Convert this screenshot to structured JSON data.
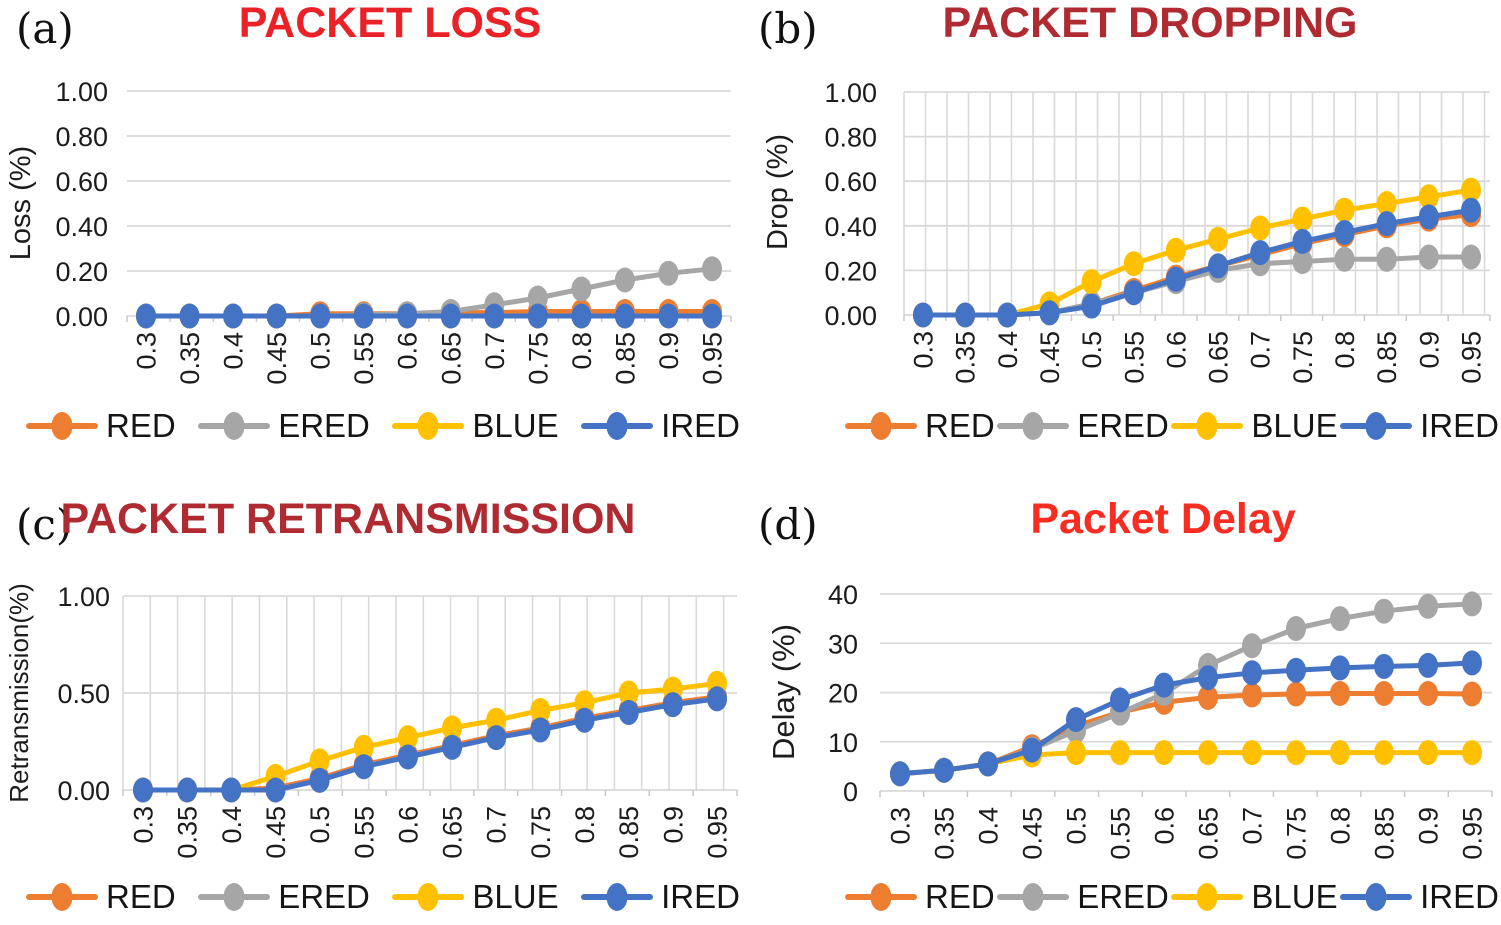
{
  "figure": {
    "background": "#FFFFFF",
    "grid_color": "#D9D9D9",
    "tick_stub_color": "#C9C9C9"
  },
  "chart_data": [
    {
      "type": "line",
      "panel_label": "(a)",
      "title": "PACKET LOSS",
      "title_color": "#EA2127",
      "ylabel": "Loss (%)",
      "ylim": [
        0,
        1.0
      ],
      "yticks": [
        0,
        0.2,
        0.4,
        0.6,
        0.8,
        1.0
      ],
      "ytick_labels": [
        "0.00",
        "0.20",
        "0.40",
        "0.60",
        "0.80",
        "1.00"
      ],
      "categories": [
        "0.3",
        "0.35",
        "0.4",
        "0.45",
        "0.5",
        "0.55",
        "0.6",
        "0.65",
        "0.7",
        "0.75",
        "0.8",
        "0.85",
        "0.9",
        "0.95"
      ],
      "grid": "horizontal",
      "legend_position": "bottom",
      "series": [
        {
          "name": "RED",
          "color": "#ED7D31",
          "values": [
            0,
            0,
            0,
            0,
            0.01,
            0.01,
            0.01,
            0.015,
            0.015,
            0.02,
            0.02,
            0.02,
            0.02,
            0.02
          ]
        },
        {
          "name": "ERED",
          "color": "#A6A6A6",
          "values": [
            0,
            0,
            0,
            0,
            0,
            0.005,
            0.01,
            0.02,
            0.05,
            0.08,
            0.12,
            0.16,
            0.19,
            0.21
          ]
        },
        {
          "name": "BLUE",
          "color": "#FFC000",
          "values": [
            0,
            0,
            0,
            0,
            0,
            0,
            0,
            0,
            0,
            0,
            0,
            0,
            0,
            0
          ]
        },
        {
          "name": "IRED",
          "color": "#4472C4",
          "values": [
            0,
            0,
            0,
            0,
            0,
            0,
            0,
            0,
            0,
            0,
            0,
            0,
            0,
            0
          ]
        }
      ]
    },
    {
      "type": "line",
      "panel_label": "(b)",
      "title": "PACKET DROPPING",
      "title_color": "#AF2B31",
      "ylabel": "Drop (%)",
      "ylim": [
        0,
        1.0
      ],
      "yticks": [
        0,
        0.2,
        0.4,
        0.6,
        0.8,
        1.0
      ],
      "ytick_labels": [
        "0.00",
        "0.20",
        "0.40",
        "0.60",
        "0.80",
        "1.00"
      ],
      "categories": [
        "0.3",
        "0.35",
        "0.4",
        "0.45",
        "0.5",
        "0.55",
        "0.6",
        "0.65",
        "0.7",
        "0.75",
        "0.8",
        "0.85",
        "0.9",
        "0.95"
      ],
      "grid": "both",
      "legend_position": "bottom",
      "series": [
        {
          "name": "RED",
          "color": "#ED7D31",
          "values": [
            0,
            0,
            0,
            0.01,
            0.05,
            0.11,
            0.17,
            0.22,
            0.27,
            0.32,
            0.36,
            0.4,
            0.43,
            0.45
          ]
        },
        {
          "name": "ERED",
          "color": "#A6A6A6",
          "values": [
            0,
            0,
            0,
            0.01,
            0.05,
            0.1,
            0.15,
            0.2,
            0.23,
            0.24,
            0.25,
            0.25,
            0.26,
            0.26
          ]
        },
        {
          "name": "BLUE",
          "color": "#FFC000",
          "values": [
            0,
            0,
            0,
            0.05,
            0.15,
            0.23,
            0.29,
            0.34,
            0.39,
            0.43,
            0.47,
            0.5,
            0.53,
            0.56
          ]
        },
        {
          "name": "IRED",
          "color": "#4472C4",
          "values": [
            0,
            0,
            0,
            0.01,
            0.04,
            0.1,
            0.16,
            0.22,
            0.28,
            0.33,
            0.37,
            0.41,
            0.44,
            0.47
          ]
        }
      ]
    },
    {
      "type": "line",
      "panel_label": "(c)",
      "title": "PACKET RETRANSMISSION",
      "title_color": "#AF2B31",
      "ylabel": "Retransmission(%)",
      "ylim": [
        0,
        1.0
      ],
      "yticks": [
        0,
        0.5,
        1.0
      ],
      "ytick_labels": [
        "0.00",
        "0.50",
        "1.00"
      ],
      "categories": [
        "0.3",
        "0.35",
        "0.4",
        "0.45",
        "0.5",
        "0.55",
        "0.6",
        "0.65",
        "0.7",
        "0.75",
        "0.8",
        "0.85",
        "0.9",
        "0.95"
      ],
      "grid": "both",
      "legend_position": "bottom",
      "series": [
        {
          "name": "RED",
          "color": "#ED7D31",
          "values": [
            0,
            0,
            0,
            0.01,
            0.06,
            0.13,
            0.18,
            0.23,
            0.28,
            0.32,
            0.37,
            0.41,
            0.45,
            0.48
          ]
        },
        {
          "name": "ERED",
          "color": "#A6A6A6",
          "values": [
            0,
            0,
            0,
            0,
            0.05,
            0.12,
            0.17,
            0.22,
            0.27,
            0.31,
            0.36,
            0.4,
            0.44,
            0.47
          ]
        },
        {
          "name": "BLUE",
          "color": "#FFC000",
          "values": [
            0,
            0,
            0,
            0.07,
            0.15,
            0.22,
            0.27,
            0.32,
            0.36,
            0.41,
            0.45,
            0.5,
            0.52,
            0.55
          ]
        },
        {
          "name": "IRED",
          "color": "#4472C4",
          "values": [
            0,
            0,
            0,
            0,
            0.05,
            0.12,
            0.17,
            0.22,
            0.27,
            0.31,
            0.36,
            0.4,
            0.44,
            0.47
          ]
        }
      ]
    },
    {
      "type": "line",
      "panel_label": "(d)",
      "title": "Packet Delay",
      "title_color": "#F92C21",
      "ylabel": "Delay (%)",
      "ylim": [
        0,
        40
      ],
      "yticks": [
        0,
        10,
        20,
        30,
        40
      ],
      "ytick_labels": [
        "0",
        "10",
        "20",
        "30",
        "40"
      ],
      "categories": [
        "0.3",
        "0.35",
        "0.4",
        "0.45",
        "0.5",
        "0.55",
        "0.6",
        "0.65",
        "0.7",
        "0.75",
        "0.8",
        "0.85",
        "0.9",
        "0.95"
      ],
      "grid": "horizontal",
      "legend_position": "bottom",
      "series": [
        {
          "name": "RED",
          "color": "#ED7D31",
          "values": [
            3.5,
            4.2,
            5.5,
            9,
            13.2,
            16,
            18,
            19,
            19.5,
            19.7,
            19.8,
            19.8,
            19.8,
            19.7
          ]
        },
        {
          "name": "ERED",
          "color": "#A6A6A6",
          "values": [
            3.5,
            4.2,
            5.5,
            8.5,
            12.2,
            15.8,
            19.8,
            25.5,
            29.5,
            33,
            35,
            36.5,
            37.5,
            38
          ]
        },
        {
          "name": "BLUE",
          "color": "#FFC000",
          "values": [
            3.5,
            4.2,
            5.5,
            7.3,
            7.8,
            7.8,
            7.8,
            7.8,
            7.8,
            7.8,
            7.8,
            7.8,
            7.8,
            7.8
          ]
        },
        {
          "name": "IRED",
          "color": "#4472C4",
          "values": [
            3.5,
            4.2,
            5.5,
            8.3,
            14.5,
            18.5,
            21.5,
            23,
            24,
            24.5,
            25,
            25.3,
            25.5,
            26
          ]
        }
      ]
    }
  ]
}
